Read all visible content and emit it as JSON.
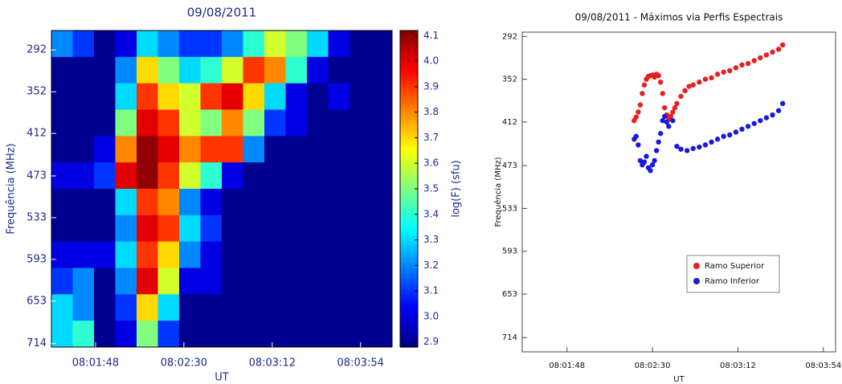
{
  "chart_data": [
    {
      "type": "heatmap",
      "title": "09/08/2011",
      "xlabel": "UT",
      "ylabel": "Frequência (MHz)",
      "colorbar_label": "log(F) (sfu)",
      "xlim": [
        87,
        249
      ],
      "xticks": [
        {
          "value": 108,
          "label": "08:01:48"
        },
        {
          "value": 150,
          "label": "08:02:30"
        },
        {
          "value": 192,
          "label": "08:03:12"
        },
        {
          "value": 234,
          "label": "08:03:54"
        }
      ],
      "ylim": [
        719,
        264
      ],
      "yticks": [
        292,
        352,
        412,
        473,
        533,
        593,
        653,
        714
      ],
      "zlim": [
        2.88,
        4.12
      ],
      "zticks": [
        2.9,
        {
          "value": 3,
          "label": "3.0"
        },
        3.1,
        3.2,
        3.3,
        3.4,
        3.5,
        3.6,
        3.7,
        3.8,
        3.9,
        {
          "value": 4,
          "label": "4.0"
        },
        4.1
      ],
      "z": [
        [
          3.2,
          3.1,
          2.9,
          3.0,
          3.3,
          3.2,
          3.1,
          3.1,
          3.2,
          3.4,
          3.6,
          3.5,
          3.3,
          3.0,
          2.9,
          2.9
        ],
        [
          2.9,
          2.9,
          2.9,
          3.2,
          3.7,
          3.5,
          3.3,
          3.4,
          3.6,
          3.9,
          3.8,
          3.4,
          3.0,
          2.9,
          2.9,
          2.9
        ],
        [
          2.9,
          2.9,
          2.9,
          3.3,
          3.9,
          3.7,
          3.6,
          3.9,
          4.0,
          3.7,
          3.3,
          3.0,
          2.9,
          3.0,
          2.9,
          2.9
        ],
        [
          2.9,
          2.9,
          2.9,
          3.5,
          4.0,
          3.9,
          3.6,
          3.5,
          3.8,
          3.5,
          3.1,
          3.0,
          2.9,
          2.9,
          2.9,
          2.9
        ],
        [
          2.9,
          2.9,
          3.0,
          3.8,
          4.1,
          4.0,
          3.8,
          3.9,
          3.9,
          3.2,
          2.9,
          2.9,
          2.9,
          2.9,
          2.9,
          2.9
        ],
        [
          3.0,
          3.0,
          3.1,
          4.0,
          4.1,
          3.9,
          3.6,
          3.4,
          3.0,
          2.9,
          2.9,
          2.9,
          2.9,
          2.9,
          2.9,
          2.9
        ],
        [
          2.9,
          2.9,
          2.9,
          3.3,
          3.9,
          3.8,
          3.2,
          3.0,
          2.9,
          2.9,
          2.9,
          2.9,
          2.9,
          2.9,
          2.9,
          2.9
        ],
        [
          2.9,
          2.9,
          2.9,
          3.2,
          4.0,
          3.9,
          3.3,
          3.1,
          2.9,
          2.9,
          2.9,
          2.9,
          2.9,
          2.9,
          2.9,
          2.9
        ],
        [
          3.0,
          3.0,
          3.0,
          3.3,
          3.9,
          3.7,
          3.2,
          3.0,
          2.9,
          2.9,
          2.9,
          2.9,
          2.9,
          2.9,
          2.9,
          2.9
        ],
        [
          3.1,
          3.2,
          2.9,
          3.2,
          4.0,
          3.6,
          3.0,
          3.0,
          2.9,
          2.9,
          2.9,
          2.9,
          2.9,
          2.9,
          2.9,
          2.9
        ],
        [
          3.3,
          3.2,
          2.9,
          3.1,
          3.7,
          3.3,
          2.9,
          2.9,
          2.9,
          2.9,
          2.9,
          2.9,
          2.9,
          2.9,
          2.9,
          2.9
        ],
        [
          3.3,
          3.4,
          2.9,
          3.0,
          3.5,
          3.1,
          2.9,
          2.9,
          2.9,
          2.9,
          2.9,
          2.9,
          2.9,
          2.9,
          2.9,
          2.9
        ]
      ]
    },
    {
      "type": "scatter",
      "title": "09/08/2011 - Máximos via Perfis Espectrais",
      "xlabel": "UT",
      "ylabel": "Frequência (MHz)",
      "xlim": [
        86,
        240
      ],
      "xticks": [
        {
          "value": 108,
          "label": "08:01:48"
        },
        {
          "value": 150,
          "label": "08:02:30"
        },
        {
          "value": 192,
          "label": "08:03:12"
        },
        {
          "value": 234,
          "label": "08:03:54"
        }
      ],
      "ylim": [
        734,
        286
      ],
      "yticks": [
        292,
        352,
        412,
        473,
        533,
        593,
        653,
        714
      ],
      "series": [
        {
          "name": "Ramo Superior",
          "color": "#e8201c",
          "x": [
            141,
            142,
            143,
            144,
            145,
            146,
            147,
            148,
            149,
            150,
            151,
            152,
            153,
            154,
            155,
            156,
            157,
            158,
            159,
            160,
            161,
            162,
            164,
            166,
            168,
            170,
            173,
            176,
            179,
            182,
            185,
            188,
            191,
            194,
            197,
            200,
            203,
            206,
            209,
            212,
            214
          ],
          "values": [
            410,
            405,
            398,
            388,
            372,
            360,
            352,
            348,
            347,
            346,
            349,
            345,
            347,
            356,
            372,
            392,
            402,
            408,
            404,
            398,
            392,
            386,
            376,
            368,
            362,
            360,
            356,
            352,
            350,
            345,
            342,
            340,
            336,
            332,
            330,
            326,
            322,
            318,
            314,
            310,
            304
          ]
        },
        {
          "name": "Ramo Inferior",
          "color": "#1a1adc",
          "x": [
            141,
            142,
            143,
            144,
            145,
            146,
            147,
            148,
            149,
            150,
            151,
            152,
            153,
            154,
            155,
            156,
            157,
            158,
            160,
            162,
            164,
            167,
            170,
            173,
            176,
            179,
            182,
            185,
            188,
            191,
            194,
            197,
            200,
            203,
            206,
            209,
            212,
            214
          ],
          "values": [
            436,
            432,
            444,
            466,
            472,
            468,
            460,
            476,
            480,
            472,
            466,
            452,
            440,
            428,
            410,
            404,
            412,
            418,
            410,
            446,
            450,
            452,
            449,
            447,
            444,
            440,
            436,
            432,
            430,
            426,
            422,
            418,
            414,
            410,
            406,
            402,
            396,
            386
          ]
        }
      ]
    }
  ]
}
